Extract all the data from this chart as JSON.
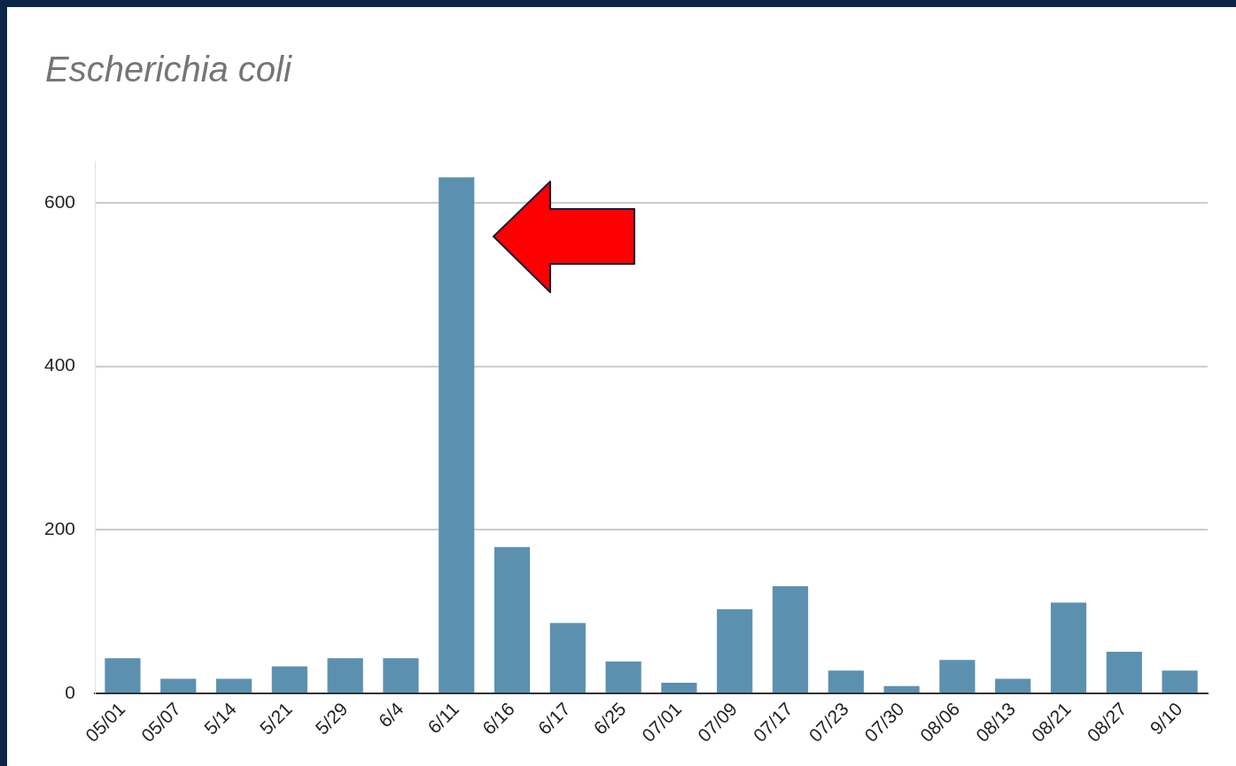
{
  "chart_data": {
    "type": "bar",
    "title": "Escherichia coli",
    "categories": [
      "05/01",
      "05/07",
      "5/14",
      "5/21",
      "5/29",
      "6/4",
      "6/11",
      "6/16",
      "6/17",
      "6/25",
      "07/01",
      "07/09",
      "07/17",
      "07/23",
      "07/30",
      "08/06",
      "08/13",
      "08/21",
      "08/27",
      "9/10"
    ],
    "values": [
      43,
      18,
      18,
      33,
      43,
      43,
      631,
      179,
      86,
      39,
      13,
      103,
      131,
      28,
      9,
      41,
      18,
      111,
      51,
      28
    ],
    "color": "#5b91af",
    "ylim": [
      0,
      650
    ],
    "yticks": [
      0,
      200,
      400,
      600
    ],
    "grid": "y"
  }
}
